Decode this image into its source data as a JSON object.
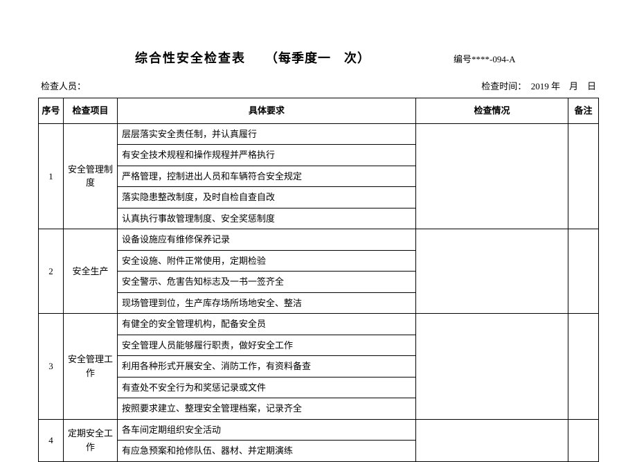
{
  "title_main": "综合性安全检查表",
  "title_sub": "（每季度一　次）",
  "doc_no": "编号****-094-A",
  "meta_inspector_label": "检查人员：",
  "meta_time_label": "检查时间：　2019 年　月　日",
  "headers": {
    "no": "序号",
    "item": "检查项目",
    "req": "具体要求",
    "chk": "检查情况",
    "note": "备注"
  },
  "sections": [
    {
      "no": "1",
      "item": "安全管理制度",
      "reqs": [
        "层层落实安全责任制，并认真履行",
        "有安全技术规程和操作规程并严格执行",
        "严格管理，控制进出人员和车辆符合安全规定",
        "落实隐患整改制度，及时自检自查自改",
        "认真执行事故管理制度、安全奖惩制度"
      ]
    },
    {
      "no": "2",
      "item": "安全生产",
      "reqs": [
        "设备设施应有维修保养记录",
        "安全设施、附件正常使用，定期检验",
        "安全警示、危害告知标志及一书一签齐全",
        "现场管理到位，生产库存场所场地安全、整洁"
      ]
    },
    {
      "no": "3",
      "item": "安全管理工作",
      "reqs": [
        "有健全的安全管理机构，配备安全员",
        "安全管理人员能够履行职责，做好安全工作",
        "利用各种形式开展安全、消防工作，有资料备查",
        "有查处不安全行为和奖惩记录或文件",
        "按照要求建立、整理安全管理档案，记录齐全"
      ]
    },
    {
      "no": "4",
      "item": "定期安全工作",
      "reqs": [
        "各车间定期组织安全活动",
        "有应急预案和抢修队伍、器材、并定期演练"
      ]
    }
  ]
}
